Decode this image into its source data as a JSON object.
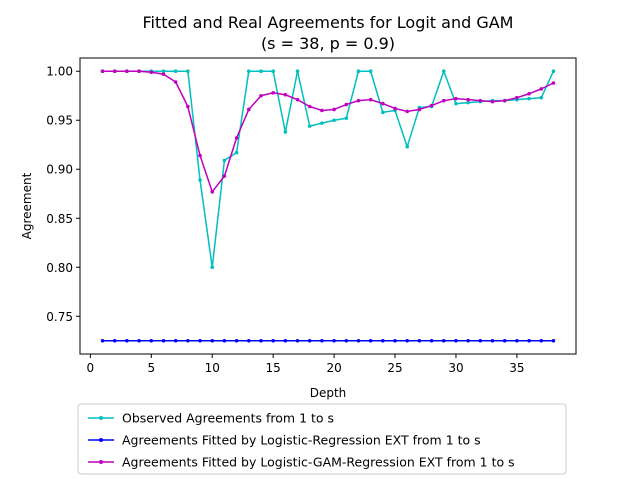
{
  "chart_data": {
    "type": "line",
    "title": "Fitted and Real Agreements for Logit and GAM",
    "subtitle": "(s = 38, p = 0.9)",
    "xlabel": "Depth",
    "ylabel": "Agreement",
    "xlim": [
      -0.85,
      39.85
    ],
    "ylim": [
      0.7115,
      1.0135
    ],
    "xticks": [
      0,
      5,
      10,
      15,
      20,
      25,
      30,
      35
    ],
    "xtick_labels": [
      "0",
      "5",
      "10",
      "15",
      "20",
      "25",
      "30",
      "35"
    ],
    "yticks": [
      0.75,
      0.8,
      0.85,
      0.9,
      0.95,
      1.0
    ],
    "ytick_labels": [
      "0.75",
      "0.80",
      "0.85",
      "0.90",
      "0.95",
      "1.00"
    ],
    "grid": false,
    "legend_position": "below plot",
    "x": [
      1,
      2,
      3,
      4,
      5,
      6,
      7,
      8,
      9,
      10,
      11,
      12,
      13,
      14,
      15,
      16,
      17,
      18,
      19,
      20,
      21,
      22,
      23,
      24,
      25,
      26,
      27,
      28,
      29,
      30,
      31,
      32,
      33,
      34,
      35,
      36,
      37,
      38
    ],
    "series": [
      {
        "name": "Observed Agreements from 1 to s",
        "color": "#00bfbf",
        "values": [
          1.0,
          1.0,
          1.0,
          1.0,
          1.0,
          1.0,
          1.0,
          1.0,
          0.889,
          0.8,
          0.909,
          0.917,
          1.0,
          1.0,
          1.0,
          0.938,
          1.0,
          0.944,
          0.947,
          0.95,
          0.952,
          1.0,
          1.0,
          0.958,
          0.96,
          0.923,
          0.963,
          0.964,
          1.0,
          0.967,
          0.968,
          0.969,
          0.97,
          0.97,
          0.971,
          0.972,
          0.973,
          1.0
        ]
      },
      {
        "name": "Agreements Fitted by Logistic-Regression EXT from 1 to s",
        "color": "#0000ff",
        "values": [
          0.725,
          0.725,
          0.725,
          0.725,
          0.725,
          0.725,
          0.725,
          0.725,
          0.725,
          0.725,
          0.725,
          0.725,
          0.725,
          0.725,
          0.725,
          0.725,
          0.725,
          0.725,
          0.725,
          0.725,
          0.725,
          0.725,
          0.725,
          0.725,
          0.725,
          0.725,
          0.725,
          0.725,
          0.725,
          0.725,
          0.725,
          0.725,
          0.725,
          0.725,
          0.725,
          0.725,
          0.725,
          0.725
        ]
      },
      {
        "name": "Agreements Fitted by Logistic-GAM-Regression EXT from 1 to s",
        "color": "#bf00bf",
        "values": [
          1.0,
          1.0,
          1.0,
          1.0,
          0.999,
          0.997,
          0.989,
          0.964,
          0.914,
          0.877,
          0.893,
          0.932,
          0.961,
          0.975,
          0.978,
          0.976,
          0.971,
          0.964,
          0.96,
          0.961,
          0.966,
          0.97,
          0.971,
          0.967,
          0.962,
          0.959,
          0.961,
          0.965,
          0.97,
          0.972,
          0.971,
          0.97,
          0.969,
          0.97,
          0.973,
          0.977,
          0.982,
          0.988
        ]
      }
    ]
  }
}
